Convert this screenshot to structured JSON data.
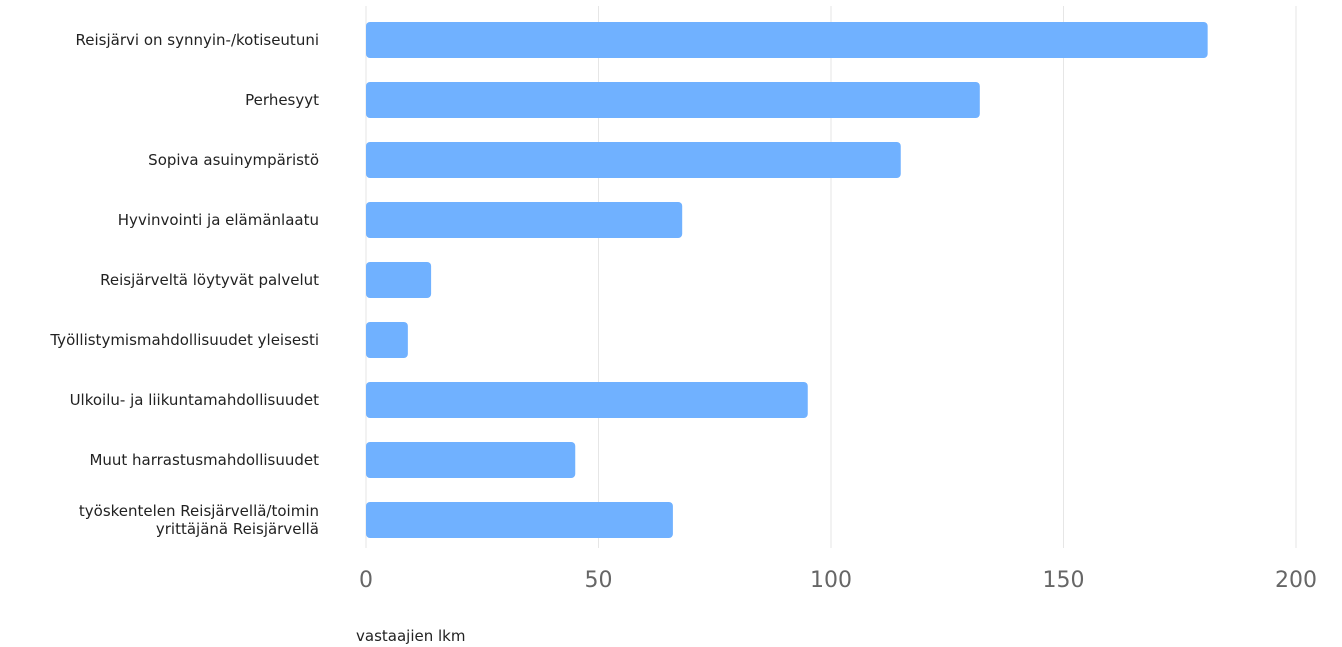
{
  "chart_data": {
    "type": "bar",
    "orientation": "horizontal",
    "categories": [
      "Reisjärvi on synnyin-/kotiseutuni",
      "Perhesyyt",
      "Sopiva asuinympäristö",
      "Hyvinvointi ja elämänlaatu",
      "Reisjärveltä löytyvät palvelut",
      "Työllistymismahdollisuudet yleisesti",
      "Ulkoilu- ja liikuntamahdollisuudet",
      "Muut harrastusmahdollisuudet",
      "työskentelen Reisjärvellä/toimin yrittäjänä Reisjärvellä"
    ],
    "category_lines": [
      [
        "Reisjärvi on synnyin-/kotiseutuni"
      ],
      [
        "Perhesyyt"
      ],
      [
        "Sopiva asuinympäristö"
      ],
      [
        "Hyvinvointi ja elämänlaatu"
      ],
      [
        "Reisjärveltä löytyvät palvelut"
      ],
      [
        "Työllistymismahdollisuudet yleisesti"
      ],
      [
        "Ulkoilu- ja liikuntamahdollisuudet"
      ],
      [
        "Muut harrastusmahdollisuudet"
      ],
      [
        "työskentelen Reisjärvellä/toimin",
        "yrittäjänä Reisjärvellä"
      ]
    ],
    "values": [
      181,
      132,
      115,
      68,
      14,
      9,
      95,
      45,
      66
    ],
    "xlim": [
      0,
      200
    ],
    "xticks": [
      0,
      50,
      100,
      150,
      200
    ],
    "xlabel": "vastaajien lkm",
    "ylabel": "",
    "title": "",
    "grid": true,
    "legend": "none",
    "bar_color": "#70b1ff"
  }
}
